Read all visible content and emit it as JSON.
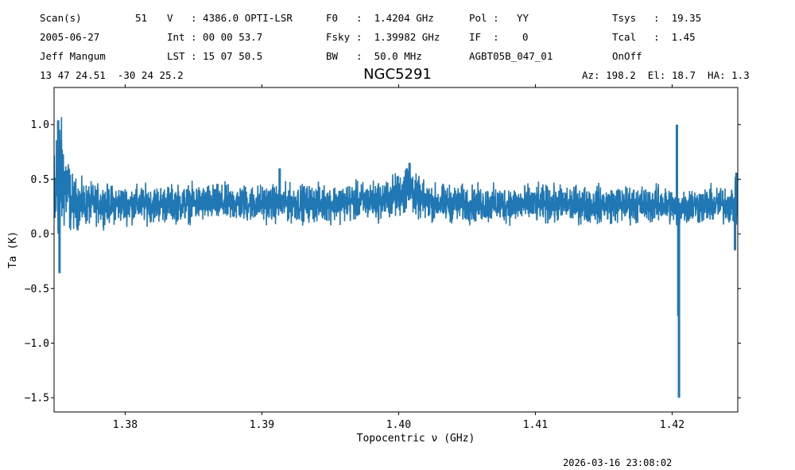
{
  "header": {
    "row1": {
      "scan_label": "Scan(s)",
      "scan_value": "51",
      "v_label": "V",
      "v_value": ": 4386.0 OPTI-LSR",
      "f0_label": "F0",
      "f0_value": ":  1.4204 GHz",
      "pol_label": "Pol :",
      "pol_value": "YY",
      "tsys_label": "Tsys",
      "tsys_value": ":  19.35"
    },
    "row2": {
      "date": "2005-06-27",
      "int_label": "Int",
      "int_value": ": 00 00 53.7",
      "fsky_label": "Fsky",
      "fsky_value": ":  1.39982 GHz",
      "if_label": "IF  :",
      "if_value": "0",
      "tcal_label": "Tcal",
      "tcal_value": ":  1.45"
    },
    "row3": {
      "observer": "Jeff Mangum",
      "lst_label": "LST",
      "lst_value": ": 15 07 50.5",
      "bw_label": "BW",
      "bw_value": ":  50.0 MHz",
      "project": "AGBT05B_047_01",
      "procedure": "OnOff"
    },
    "row4": {
      "coords": "13 47 24.51  -30 24 25.2",
      "azel": "Az: 198.2  El: 18.7  HA: 1.3"
    }
  },
  "title": "NGC5291",
  "timestamp": "2026-03-16 23:08:02",
  "chart_data": {
    "type": "line",
    "xlabel": "Topocentric ν (GHz)",
    "ylabel": "Ta (K)",
    "xlim": [
      1.3748,
      1.4248
    ],
    "ylim": [
      -1.63,
      1.34
    ],
    "xticks": [
      1.38,
      1.39,
      1.4,
      1.41,
      1.42
    ],
    "xtick_labels": [
      "1.38",
      "1.39",
      "1.40",
      "1.41",
      "1.42"
    ],
    "yticks": [
      1.0,
      0.5,
      0.0,
      -0.5,
      -1.0,
      -1.5
    ],
    "ytick_labels": [
      "1.0",
      "0.5",
      "0.0",
      "−0.5",
      "−1.0",
      "−1.5"
    ],
    "grid": false,
    "color": "#1f77b4",
    "series": [
      {
        "x": [
          1.3748,
          1.375,
          1.3752,
          1.3754,
          1.3756,
          1.3758,
          1.376,
          1.3763,
          1.3767,
          1.3772,
          1.378,
          1.38,
          1.385,
          1.39,
          1.395,
          1.399,
          1.4,
          1.4005,
          1.401,
          1.4012,
          1.402,
          1.405,
          1.41,
          1.415,
          1.419,
          1.4201,
          1.4203,
          1.4204,
          1.4205,
          1.4207,
          1.4212,
          1.422,
          1.424,
          1.4246,
          1.4248
        ],
        "y": [
          0.2,
          0.5,
          0.55,
          0.5,
          0.45,
          0.4,
          0.3,
          0.28,
          0.27,
          0.27,
          0.27,
          0.27,
          0.28,
          0.28,
          0.28,
          0.31,
          0.36,
          0.4,
          0.42,
          0.34,
          0.29,
          0.27,
          0.27,
          0.27,
          0.27,
          0.26,
          0.2,
          0.18,
          0.22,
          0.26,
          0.26,
          0.26,
          0.27,
          0.27,
          0.26
        ],
        "noise_halfwidth": [
          0.55,
          0.55,
          0.5,
          0.45,
          0.4,
          0.35,
          0.24,
          0.21,
          0.19,
          0.17,
          0.16,
          0.15,
          0.15,
          0.15,
          0.15,
          0.16,
          0.18,
          0.2,
          0.2,
          0.17,
          0.15,
          0.15,
          0.15,
          0.15,
          0.15,
          0.15,
          0.15,
          0.15,
          0.15,
          0.15,
          0.15,
          0.15,
          0.15,
          0.18,
          0.2
        ]
      }
    ],
    "features": [
      {
        "x": 1.42035,
        "y": 1.0
      },
      {
        "x": 1.42045,
        "y": -0.75
      },
      {
        "x": 1.4205,
        "y": -1.5
      },
      {
        "x": 1.3913,
        "y": 0.6
      },
      {
        "x": 1.4006,
        "y": 0.6
      },
      {
        "x": 1.4008,
        "y": 0.65
      },
      {
        "x": 1.4246,
        "y": -0.15
      },
      {
        "x": 1.4247,
        "y": 0.56
      },
      {
        "x": 1.3751,
        "y": 1.04
      },
      {
        "x": 1.3752,
        "y": -0.36
      }
    ]
  }
}
